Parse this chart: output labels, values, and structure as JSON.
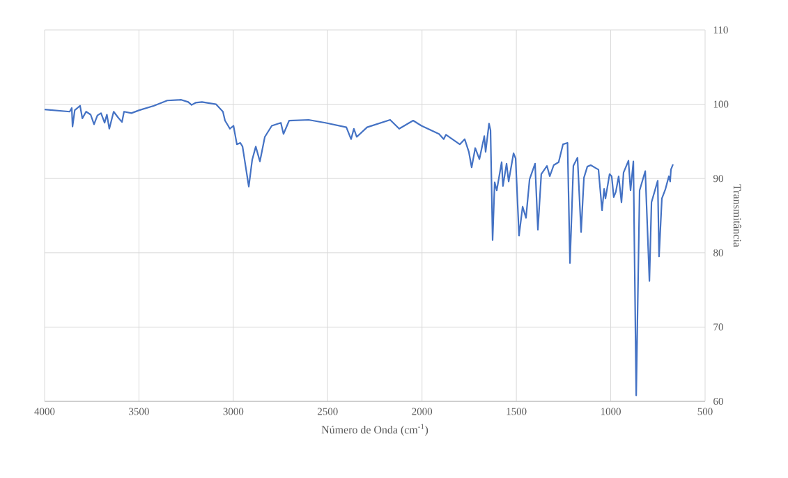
{
  "chart_data": {
    "type": "line",
    "xlabel": "Número de Onda (cm$^{-1}$)",
    "ylabel": "Transmitância",
    "x": [
      4000,
      3867,
      3856,
      3852,
      3840,
      3812,
      3800,
      3780,
      3756,
      3738,
      3720,
      3701,
      3682,
      3670,
      3657,
      3634,
      3610,
      3590,
      3579,
      3540,
      3498,
      3420,
      3350,
      3276,
      3239,
      3221,
      3200,
      3166,
      3092,
      3055,
      3044,
      3018,
      2999,
      2981,
      2963,
      2951,
      2918,
      2900,
      2881,
      2859,
      2833,
      2796,
      2748,
      2734,
      2704,
      2601,
      2512,
      2401,
      2376,
      2361,
      2346,
      2291,
      2169,
      2121,
      2047,
      2003,
      1910,
      1885,
      1873,
      1800,
      1774,
      1752,
      1737,
      1718,
      1696,
      1670,
      1663,
      1645,
      1637,
      1626,
      1615,
      1604,
      1578,
      1571,
      1552,
      1541,
      1515,
      1504,
      1486,
      1467,
      1449,
      1430,
      1401,
      1386,
      1368,
      1338,
      1323,
      1302,
      1276,
      1253,
      1229,
      1216,
      1198,
      1176,
      1157,
      1142,
      1124,
      1106,
      1072,
      1065,
      1046,
      1035,
      1028,
      1006,
      995,
      984,
      973,
      958,
      943,
      932,
      906,
      895,
      880,
      865,
      847,
      817,
      795,
      784,
      751,
      744,
      729,
      711,
      692,
      685,
      681,
      670
    ],
    "values": [
      99.3,
      99.0,
      99.5,
      97.0,
      99.2,
      99.8,
      98.1,
      99.0,
      98.6,
      97.3,
      98.5,
      98.8,
      97.5,
      98.6,
      96.7,
      99.0,
      98.2,
      97.6,
      99.0,
      98.8,
      99.2,
      99.8,
      100.5,
      100.6,
      100.3,
      99.9,
      100.2,
      100.3,
      100.0,
      99.0,
      97.8,
      96.7,
      97.1,
      94.6,
      94.8,
      94.3,
      88.9,
      92.5,
      94.3,
      92.3,
      95.6,
      97.1,
      97.5,
      96.0,
      97.8,
      97.9,
      97.5,
      96.9,
      95.3,
      96.7,
      95.6,
      96.9,
      97.9,
      96.7,
      97.8,
      97.1,
      96.0,
      95.3,
      95.9,
      94.6,
      95.3,
      93.6,
      91.5,
      94.1,
      92.6,
      95.7,
      93.6,
      97.4,
      96.5,
      81.7,
      89.5,
      88.4,
      92.2,
      89.0,
      92.0,
      89.6,
      93.4,
      92.7,
      82.3,
      86.2,
      84.7,
      89.9,
      92.0,
      83.1,
      90.6,
      91.7,
      90.3,
      91.8,
      92.2,
      94.6,
      94.8,
      78.6,
      91.7,
      92.8,
      82.8,
      90.1,
      91.6,
      91.8,
      91.3,
      91.2,
      85.7,
      88.6,
      87.3,
      90.6,
      90.3,
      87.5,
      88.2,
      90.3,
      86.8,
      90.8,
      92.4,
      88.4,
      92.3,
      60.8,
      88.4,
      91.0,
      76.2,
      86.8,
      89.7,
      79.5,
      87.3,
      88.5,
      90.3,
      89.6,
      91.2,
      91.9
    ],
    "color": "#4472c4",
    "xlim": [
      4000,
      500
    ],
    "xticks": [
      4000,
      3500,
      3000,
      2500,
      2000,
      1500,
      1000,
      500
    ],
    "ylim": [
      60,
      110
    ],
    "yticks": [
      60,
      70,
      80,
      90,
      100,
      110
    ],
    "grid": true,
    "marker": "none",
    "line_style": "solid"
  }
}
